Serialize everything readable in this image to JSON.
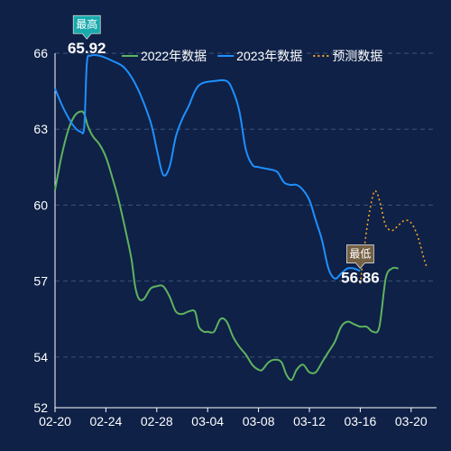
{
  "chart_data": {
    "type": "line",
    "title": "",
    "xlabel": "",
    "ylabel": "",
    "ylim": [
      52,
      66
    ],
    "y_ticks": [
      52,
      54,
      57,
      60,
      63,
      66
    ],
    "x_tick_labels": [
      "02-20",
      "02-24",
      "02-28",
      "03-04",
      "03-08",
      "03-12",
      "03-16",
      "03-20"
    ],
    "x_tick_day_index": [
      0,
      4,
      8,
      12,
      16,
      20,
      24,
      28
    ],
    "x_range_days": [
      0,
      30
    ],
    "grid": "horizontal dashed",
    "legend_position": "top-right",
    "series": [
      {
        "name": "2022年数据",
        "color": "#5fb35f",
        "dashed": false,
        "points": [
          [
            0,
            60.6
          ],
          [
            0.5,
            61.9
          ],
          [
            1,
            62.9
          ],
          [
            1.5,
            63.5
          ],
          [
            2,
            63.7
          ],
          [
            2.3,
            63.6
          ],
          [
            2.6,
            63.1
          ],
          [
            3,
            62.7
          ],
          [
            3.5,
            62.4
          ],
          [
            4,
            61.9
          ],
          [
            4.5,
            61.1
          ],
          [
            5,
            60.2
          ],
          [
            5.5,
            59.1
          ],
          [
            6,
            57.9
          ],
          [
            6.3,
            56.8
          ],
          [
            6.6,
            56.3
          ],
          [
            7,
            56.3
          ],
          [
            7.5,
            56.7
          ],
          [
            8,
            56.8
          ],
          [
            8.5,
            56.8
          ],
          [
            9,
            56.4
          ],
          [
            9.5,
            55.8
          ],
          [
            10,
            55.7
          ],
          [
            10.5,
            55.8
          ],
          [
            11,
            55.8
          ],
          [
            11.3,
            55.2
          ],
          [
            11.7,
            55.0
          ],
          [
            12,
            55.0
          ],
          [
            12.5,
            55.0
          ],
          [
            13,
            55.5
          ],
          [
            13.5,
            55.4
          ],
          [
            14,
            54.8
          ],
          [
            14.5,
            54.4
          ],
          [
            15,
            54.1
          ],
          [
            15.5,
            53.7
          ],
          [
            16,
            53.5
          ],
          [
            16.3,
            53.5
          ],
          [
            16.8,
            53.8
          ],
          [
            17.3,
            53.9
          ],
          [
            17.8,
            53.8
          ],
          [
            18.2,
            53.3
          ],
          [
            18.6,
            53.1
          ],
          [
            19,
            53.5
          ],
          [
            19.5,
            53.7
          ],
          [
            20,
            53.4
          ],
          [
            20.5,
            53.4
          ],
          [
            21,
            53.8
          ],
          [
            21.5,
            54.2
          ],
          [
            22,
            54.6
          ],
          [
            22.5,
            55.2
          ],
          [
            23,
            55.4
          ],
          [
            23.5,
            55.3
          ],
          [
            24,
            55.2
          ],
          [
            24.5,
            55.2
          ],
          [
            25,
            55.0
          ],
          [
            25.5,
            55.2
          ],
          [
            26,
            57.1
          ],
          [
            26.5,
            57.5
          ],
          [
            27,
            57.5
          ]
        ]
      },
      {
        "name": "2023年数据",
        "color": "#1e90ff",
        "dashed": false,
        "points": [
          [
            0,
            64.6
          ],
          [
            0.5,
            64.0
          ],
          [
            1,
            63.5
          ],
          [
            1.5,
            63.1
          ],
          [
            2,
            62.9
          ],
          [
            2.3,
            63.1
          ],
          [
            2.5,
            65.6
          ],
          [
            2.8,
            65.9
          ],
          [
            3.5,
            65.9
          ],
          [
            4.5,
            65.7
          ],
          [
            5.5,
            65.4
          ],
          [
            6.5,
            64.6
          ],
          [
            7.5,
            63.3
          ],
          [
            8,
            62.2
          ],
          [
            8.5,
            61.2
          ],
          [
            9,
            61.5
          ],
          [
            9.5,
            62.7
          ],
          [
            10,
            63.4
          ],
          [
            10.5,
            63.9
          ],
          [
            11,
            64.5
          ],
          [
            11.5,
            64.8
          ],
          [
            12.5,
            64.9
          ],
          [
            13.5,
            64.9
          ],
          [
            14,
            64.5
          ],
          [
            14.5,
            63.7
          ],
          [
            15,
            62.2
          ],
          [
            15.5,
            61.6
          ],
          [
            16,
            61.5
          ],
          [
            17,
            61.4
          ],
          [
            17.5,
            61.3
          ],
          [
            18,
            60.9
          ],
          [
            18.5,
            60.8
          ],
          [
            19,
            60.8
          ],
          [
            19.5,
            60.6
          ],
          [
            20,
            60.2
          ],
          [
            20.5,
            59.4
          ],
          [
            21,
            58.6
          ],
          [
            21.5,
            57.5
          ],
          [
            22,
            57.1
          ],
          [
            22.5,
            57.3
          ],
          [
            23,
            57.5
          ],
          [
            23.5,
            57.5
          ],
          [
            24,
            57.4
          ]
        ]
      },
      {
        "name": "预测数据",
        "color": "#f5a623",
        "dashed": true,
        "points": [
          [
            24,
            56.9
          ],
          [
            24.5,
            59.0
          ],
          [
            25,
            60.4
          ],
          [
            25.3,
            60.5
          ],
          [
            25.6,
            60.0
          ],
          [
            26,
            59.2
          ],
          [
            26.5,
            59.0
          ],
          [
            27,
            59.2
          ],
          [
            27.5,
            59.4
          ],
          [
            28,
            59.3
          ],
          [
            28.5,
            58.8
          ],
          [
            29,
            57.9
          ],
          [
            29.2,
            57.6
          ]
        ]
      }
    ],
    "markers": [
      {
        "label": "最高",
        "value": "65.92",
        "x_day": 2.5,
        "y": 65.92,
        "color": "#1ab2b2",
        "position": "above"
      },
      {
        "label": "最低",
        "value": "56.86",
        "x_day": 24,
        "y": 56.86,
        "color": "#7a6446",
        "position": "above"
      }
    ],
    "axis_color": "#ffffff",
    "grid_color": "#3b5277"
  }
}
